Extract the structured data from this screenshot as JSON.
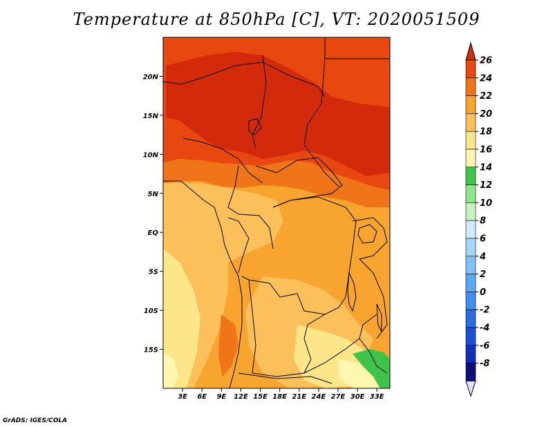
{
  "title": "Temperature at 850hPa [C], VT: 2020051509",
  "credit": "GrADS: IGES/COLA",
  "map": {
    "lon_range": [
      0,
      35
    ],
    "lat_range": [
      -20,
      25
    ],
    "lon_ticks": [
      {
        "value": 3,
        "label": "3E"
      },
      {
        "value": 6,
        "label": "6E"
      },
      {
        "value": 9,
        "label": "9E"
      },
      {
        "value": 12,
        "label": "12E"
      },
      {
        "value": 15,
        "label": "15E"
      },
      {
        "value": 18,
        "label": "18E"
      },
      {
        "value": 21,
        "label": "21E"
      },
      {
        "value": 24,
        "label": "24E"
      },
      {
        "value": 27,
        "label": "27E"
      },
      {
        "value": 30,
        "label": "30E"
      },
      {
        "value": 33,
        "label": "33E"
      }
    ],
    "lat_ticks": [
      {
        "value": 20,
        "label": "20N"
      },
      {
        "value": 15,
        "label": "15N"
      },
      {
        "value": 10,
        "label": "10N"
      },
      {
        "value": 5,
        "label": "5N"
      },
      {
        "value": 0,
        "label": "EQ"
      },
      {
        "value": -5,
        "label": "5S"
      },
      {
        "value": -10,
        "label": "10S"
      },
      {
        "value": -15,
        "label": "15S"
      }
    ]
  },
  "colorbar": {
    "levels": [
      {
        "label": "-8",
        "color": "#0c0f7a"
      },
      {
        "label": "-6",
        "color": "#1230b8"
      },
      {
        "label": "-4",
        "color": "#1c4fd8"
      },
      {
        "label": "-2",
        "color": "#2a6ce6"
      },
      {
        "label": "0",
        "color": "#3d8ef0"
      },
      {
        "label": "2",
        "color": "#5aa9f5"
      },
      {
        "label": "4",
        "color": "#7fc0f8"
      },
      {
        "label": "6",
        "color": "#a6d5fa"
      },
      {
        "label": "8",
        "color": "#cfeafc"
      },
      {
        "label": "10",
        "color": "#c6f2c2"
      },
      {
        "label": "12",
        "color": "#8ee68a"
      },
      {
        "label": "14",
        "color": "#3fc44a"
      },
      {
        "label": "16",
        "color": "#fff7b0"
      },
      {
        "label": "18",
        "color": "#fde68a"
      },
      {
        "label": "20",
        "color": "#fbc05a"
      },
      {
        "label": "22",
        "color": "#f7a52f"
      },
      {
        "label": "24",
        "color": "#f07418"
      },
      {
        "label": "26",
        "color": "#e8470f"
      }
    ],
    "under_color": "#e3e0ff",
    "over_color": "#d42a0c"
  },
  "field_colors": {
    "c16": "#fff7b0",
    "c18": "#fde68a",
    "c20": "#fbc05a",
    "c22": "#f7a52f",
    "c24": "#f07418",
    "c26": "#e8470f",
    "c28": "#d42a0c",
    "c14": "#3fc44a",
    "c12": "#8ee68a"
  }
}
